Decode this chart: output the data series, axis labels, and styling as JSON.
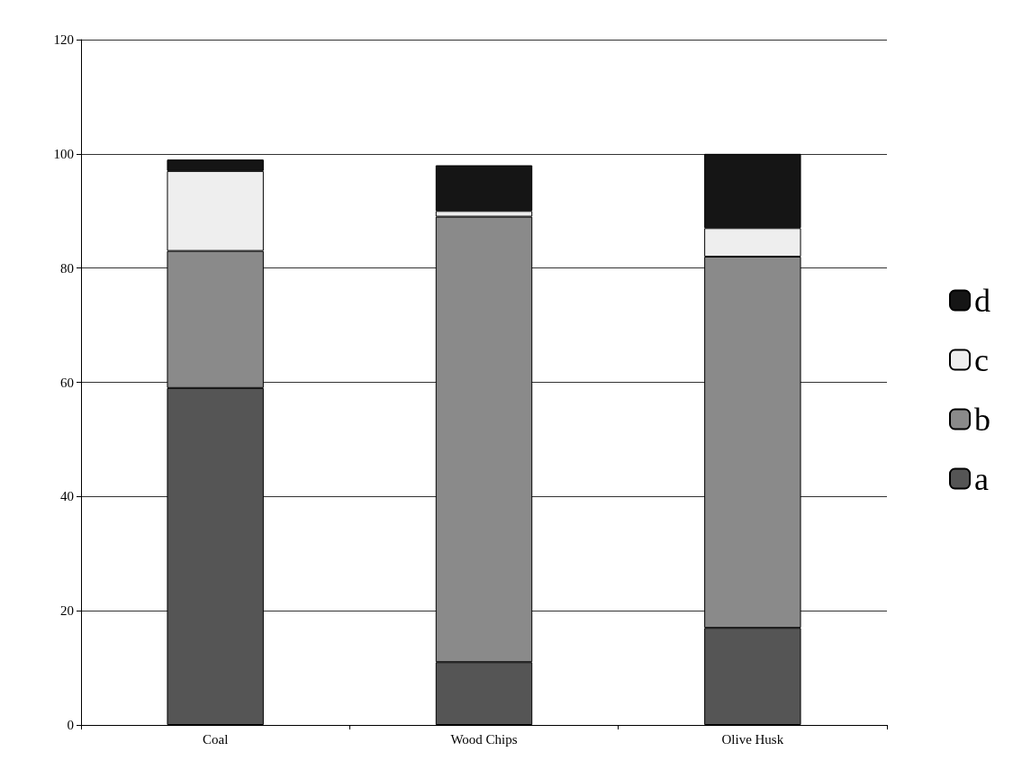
{
  "chart_data": {
    "type": "bar",
    "stacked": true,
    "categories": [
      "Coal",
      "Wood Chips",
      "Olive Husk"
    ],
    "series": [
      {
        "name": "a",
        "color": "#555555",
        "values": [
          59,
          11,
          17
        ]
      },
      {
        "name": "b",
        "color": "#8a8a8a",
        "values": [
          24,
          78,
          65
        ]
      },
      {
        "name": "c",
        "color": "#eeeeee",
        "values": [
          14,
          1,
          5
        ]
      },
      {
        "name": "d",
        "color": "#151515",
        "values": [
          2,
          8,
          13
        ]
      }
    ],
    "ylim": [
      0,
      120
    ],
    "yticks": [
      0,
      20,
      40,
      60,
      80,
      100,
      120
    ],
    "grid": "y",
    "legend": "right"
  }
}
